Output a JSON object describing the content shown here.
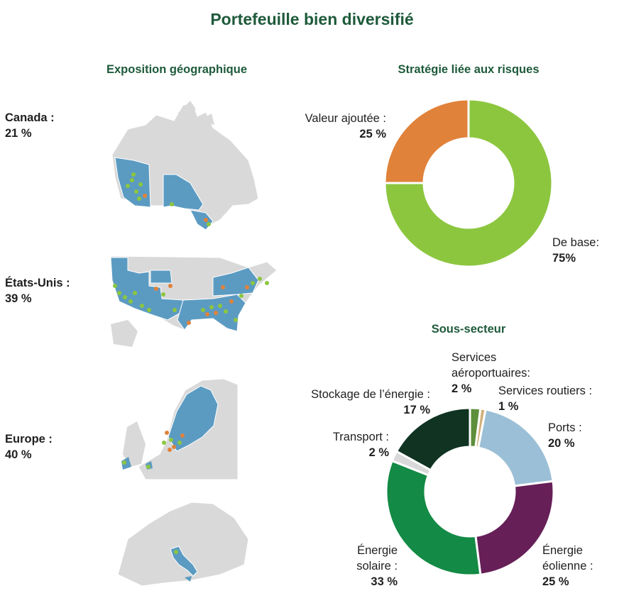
{
  "title": "Portefeuille bien diversifié",
  "geo": {
    "title": "Exposition géographique",
    "regions": [
      {
        "name": "Canada :",
        "value": "21 %"
      },
      {
        "name": "États-Unis :",
        "value": "39 %"
      },
      {
        "name": "Europe :",
        "value": "40 %"
      }
    ]
  },
  "chart_data": [
    {
      "type": "pie",
      "title": "Stratégie liée aux risques",
      "categories": [
        "De base:",
        "Valeur ajoutée :"
      ],
      "values": [
        75,
        25
      ],
      "value_labels": [
        "75%",
        "25 %"
      ],
      "colors": [
        "#8cc63f",
        "#e0823a"
      ]
    },
    {
      "type": "pie",
      "title": "Sous-secteur",
      "categories": [
        "Services aéroportuaires:",
        "Services routiers :",
        "Ports :",
        "Énergie éolienne :",
        "Énergie solaire :",
        "Transport :",
        "Stockage de l’énergie :"
      ],
      "values": [
        2,
        1,
        20,
        25,
        33,
        2,
        17
      ],
      "value_labels": [
        "2 %",
        "1 %",
        "20 %",
        "25 %",
        "33 %",
        "2 %",
        "17 %"
      ],
      "colors": [
        "#5e8f3b",
        "#d4b07a",
        "#9bbfd6",
        "#661f57",
        "#138a45",
        "#d9d9d9",
        "#103322"
      ]
    }
  ],
  "colors": {
    "heading": "#1e5a3a",
    "land": "#d9d9d9",
    "exposure": "#5b9bc2",
    "asset_green": "#8cc63f",
    "asset_orange": "#e0823a"
  }
}
